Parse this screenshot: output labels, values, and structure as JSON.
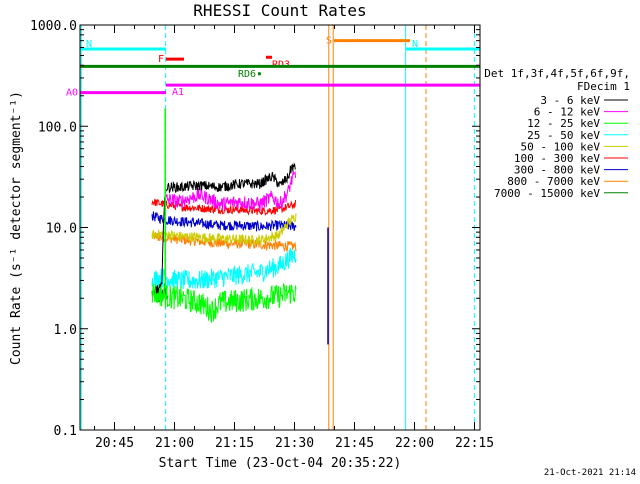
{
  "chart_data": {
    "type": "line",
    "title": "RHESSI Count Rates",
    "xlabel": "Start Time (23-Oct-04 20:35:22)",
    "ylabel": "Count Rate (s⁻¹ detector segment⁻¹)",
    "x_unit": "minutes after 20:35:22 (23-Oct-04)",
    "xlim": [
      0,
      100
    ],
    "x_ticks": [
      {
        "value": 8.63,
        "label": "20:45"
      },
      {
        "value": 23.63,
        "label": "21:00"
      },
      {
        "value": 38.63,
        "label": "21:15"
      },
      {
        "value": 53.63,
        "label": "21:30"
      },
      {
        "value": 68.63,
        "label": "21:45"
      },
      {
        "value": 83.63,
        "label": "22:00"
      },
      {
        "value": 98.63,
        "label": "22:15"
      }
    ],
    "y_scale": "log",
    "ylim": [
      0.1,
      1000
    ],
    "y_ticks": [
      {
        "value": 0.1,
        "label": "0.1"
      },
      {
        "value": 1,
        "label": "1.0"
      },
      {
        "value": 10,
        "label": "10.0"
      },
      {
        "value": 100,
        "label": "100.0"
      },
      {
        "value": 1000,
        "label": "1000.0"
      }
    ],
    "legend": {
      "position": "right",
      "header": [
        "Det 1f,3f,4f,5f,6f,9f,",
        "FDecim 1"
      ],
      "entries": [
        {
          "label": "3 - 6 keV",
          "color": "#000000"
        },
        {
          "label": "6 - 12 keV",
          "color": "#ff00ff"
        },
        {
          "label": "12 - 25 keV",
          "color": "#00ff00"
        },
        {
          "label": "25 - 50 keV",
          "color": "#00ffff"
        },
        {
          "label": "50 - 100 keV",
          "color": "#cccc00"
        },
        {
          "label": "100 - 300 keV",
          "color": "#ff0000"
        },
        {
          "label": "300 - 800 keV",
          "color": "#0000cc"
        },
        {
          "label": "800 - 7000 keV",
          "color": "#ff8000"
        },
        {
          "label": "7000 - 15000 keV",
          "color": "#008000"
        }
      ]
    },
    "series": [
      {
        "name": "3 - 6 keV",
        "color": "#000000",
        "start": 19,
        "end": 54,
        "level": 26,
        "noise": 0.05,
        "points": [
          [
            19,
            2.5
          ],
          [
            19.5,
            2.4
          ],
          [
            20.5,
            2.6
          ],
          [
            21.5,
            25
          ],
          [
            25,
            25
          ],
          [
            30,
            26
          ],
          [
            35,
            25
          ],
          [
            40,
            27
          ],
          [
            45,
            27
          ],
          [
            48,
            32
          ],
          [
            50,
            26
          ],
          [
            52,
            31
          ],
          [
            53,
            40
          ],
          [
            54,
            38
          ]
        ]
      },
      {
        "name": "6 - 12 keV",
        "color": "#ff00ff",
        "start": 21.5,
        "end": 54,
        "level": 19,
        "noise": 0.07,
        "points": [
          [
            21.5,
            19
          ],
          [
            25,
            18
          ],
          [
            30,
            21
          ],
          [
            35,
            17
          ],
          [
            40,
            18
          ],
          [
            45,
            17
          ],
          [
            48,
            20
          ],
          [
            50,
            17
          ],
          [
            52,
            22
          ],
          [
            53,
            30
          ],
          [
            54,
            33
          ]
        ]
      },
      {
        "name": "12 - 25 keV",
        "color": "#00ff00",
        "start": 18,
        "end": 54,
        "level": 2.2,
        "noise": 0.12,
        "points": [
          [
            18,
            2.3
          ],
          [
            21,
            2.1
          ],
          [
            25,
            2.0
          ],
          [
            30,
            1.8
          ],
          [
            33,
            1.5
          ],
          [
            35,
            1.8
          ],
          [
            40,
            1.9
          ],
          [
            45,
            2.0
          ],
          [
            50,
            2.1
          ],
          [
            53,
            2.3
          ],
          [
            54,
            2.2
          ]
        ]
      },
      {
        "name": "25 - 50 keV",
        "color": "#00ffff",
        "start": 18,
        "end": 54,
        "level": 3.2,
        "noise": 0.1,
        "points": [
          [
            18,
            3.1
          ],
          [
            21,
            3.2
          ],
          [
            25,
            3.0
          ],
          [
            30,
            3.0
          ],
          [
            35,
            3.2
          ],
          [
            40,
            3.4
          ],
          [
            45,
            3.6
          ],
          [
            50,
            4.2
          ],
          [
            53,
            5.2
          ],
          [
            54,
            5.5
          ]
        ]
      },
      {
        "name": "50 - 100 keV",
        "color": "#cccc00",
        "start": 18,
        "end": 54,
        "level": 7.5,
        "noise": 0.05,
        "points": [
          [
            18,
            8.5
          ],
          [
            21,
            8.6
          ],
          [
            25,
            8.2
          ],
          [
            30,
            8.0
          ],
          [
            35,
            7.8
          ],
          [
            40,
            7.6
          ],
          [
            45,
            7.5
          ],
          [
            50,
            8.5
          ],
          [
            52,
            11
          ],
          [
            53,
            12
          ],
          [
            54,
            13
          ]
        ]
      },
      {
        "name": "100 - 300 keV",
        "color": "#ff0000",
        "start": 18,
        "end": 54,
        "level": 15,
        "noise": 0.04,
        "points": [
          [
            18,
            18
          ],
          [
            21,
            17
          ],
          [
            25,
            16
          ],
          [
            30,
            15.5
          ],
          [
            35,
            15
          ],
          [
            40,
            15
          ],
          [
            45,
            14.5
          ],
          [
            50,
            15
          ],
          [
            52,
            16
          ],
          [
            54,
            17
          ]
        ]
      },
      {
        "name": "300 - 800 keV",
        "color": "#0000cc",
        "start": 18,
        "end": 54,
        "level": 10.5,
        "noise": 0.05,
        "points": [
          [
            18,
            13
          ],
          [
            21,
            12
          ],
          [
            25,
            11.5
          ],
          [
            30,
            11
          ],
          [
            35,
            10.5
          ],
          [
            40,
            10.5
          ],
          [
            45,
            10.2
          ],
          [
            50,
            10.5
          ],
          [
            54,
            10.2
          ]
        ]
      },
      {
        "name": "800 - 7000 keV",
        "color": "#ff8000",
        "start": 18,
        "end": 54,
        "level": 7,
        "noise": 0.05,
        "points": [
          [
            18,
            8.2
          ],
          [
            21,
            8
          ],
          [
            25,
            7.6
          ],
          [
            30,
            7.3
          ],
          [
            35,
            7.0
          ],
          [
            40,
            6.9
          ],
          [
            45,
            6.8
          ],
          [
            50,
            6.6
          ],
          [
            54,
            6.5
          ]
        ]
      },
      {
        "name": "7000 - 15000 keV",
        "color": "#008000",
        "start": 18,
        "end": 22,
        "level": 2.2,
        "noise": 0.1,
        "points": [
          [
            18,
            2.2
          ],
          [
            20,
            2.1
          ],
          [
            21.5,
            2.3
          ]
        ]
      }
    ],
    "flag_bars": [
      {
        "label": "N",
        "color": "#00ffff",
        "x0": 0,
        "x1": 21.5,
        "y": 580
      },
      {
        "label": "N",
        "color": "#00ffff",
        "x0": 81.5,
        "x1": 100,
        "y": 580
      },
      {
        "label": "F",
        "color": "#ff0000",
        "x0": 21.5,
        "x1": 26,
        "y": 460
      },
      {
        "label": "RD3",
        "color": "#ff0000",
        "x0": 46.5,
        "x1": 48,
        "y": 480
      },
      {
        "label": "",
        "color": "#008000",
        "x0": 0,
        "x1": 100,
        "y": 390
      },
      {
        "label": "RD6",
        "color": "#008000",
        "x0": 44.5,
        "x1": 45.2,
        "y": 330
      },
      {
        "label": "S",
        "color": "#ff8000",
        "x0": 63.5,
        "x1": 82.5,
        "y": 700
      },
      {
        "label": "A0",
        "color": "#ff00ff",
        "x0": 0,
        "x1": 21.5,
        "y": 215
      },
      {
        "label": "A1",
        "color": "#ff00ff",
        "x0": 21.5,
        "x1": 100,
        "y": 255
      }
    ],
    "vertical_lines": [
      {
        "x": 0.3,
        "color": "#00ffff",
        "style": "solid"
      },
      {
        "x": 21.4,
        "color": "#00ffff",
        "style": "dashed"
      },
      {
        "x": 81.4,
        "color": "#00ffff",
        "style": "solid"
      },
      {
        "x": 98.6,
        "color": "#00ffff",
        "style": "dashed"
      },
      {
        "x": 62.2,
        "color": "#ff8000",
        "style": "solid"
      },
      {
        "x": 63.3,
        "color": "#ff8000",
        "style": "solid"
      },
      {
        "x": 86.5,
        "color": "#ff8000",
        "style": "dashed"
      }
    ],
    "spikes": [
      {
        "x": 21.3,
        "from": 2.5,
        "to": 150,
        "color": "#00ff00"
      },
      {
        "x": 62.0,
        "from": 0.7,
        "to": 10,
        "color": "#0000cc"
      }
    ],
    "timestamp": "21-Oct-2021 21:14"
  }
}
